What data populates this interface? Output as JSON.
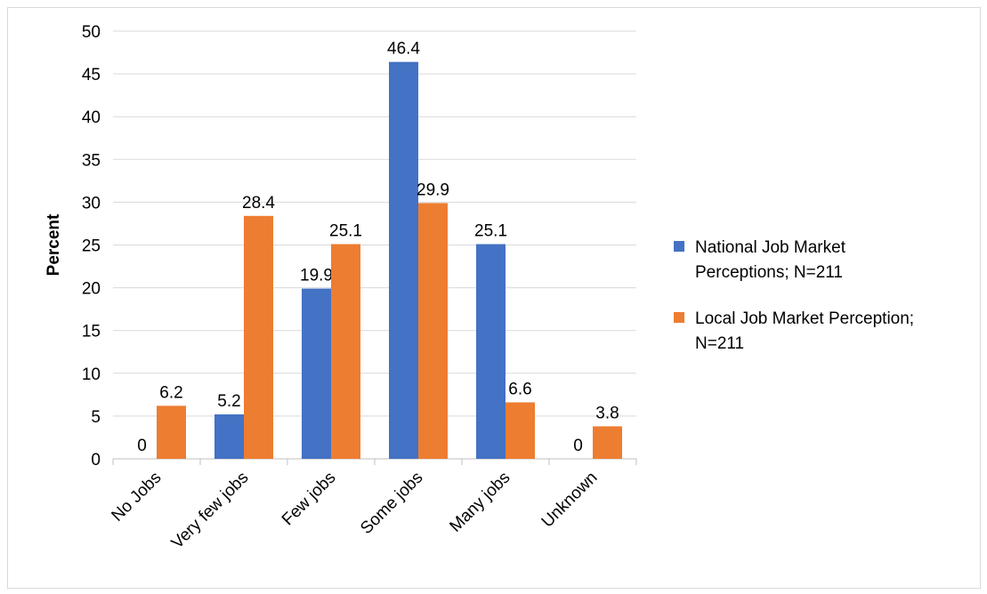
{
  "chart_data": {
    "type": "bar",
    "title": "",
    "xlabel": "",
    "ylabel": "Percent",
    "ylim": [
      0,
      50
    ],
    "ytick_step": 5,
    "grid": true,
    "legend_position": "right",
    "categories": [
      "No Jobs",
      "Very few jobs",
      "Few jobs",
      "Some jobs",
      "Many jobs",
      "Unknown"
    ],
    "series": [
      {
        "name": "National Job Market Perceptions; N=211",
        "legend_lines": [
          "National Job Market",
          "Perceptions; N=211"
        ],
        "color": "#4472c4",
        "values": [
          0,
          5.2,
          19.9,
          46.4,
          25.1,
          0
        ]
      },
      {
        "name": "Local Job Market Perception; N=211",
        "legend_lines": [
          "Local Job Market Perception;",
          "N=211"
        ],
        "color": "#ed7d31",
        "values": [
          6.2,
          28.4,
          25.1,
          29.9,
          6.6,
          3.8
        ]
      }
    ]
  }
}
